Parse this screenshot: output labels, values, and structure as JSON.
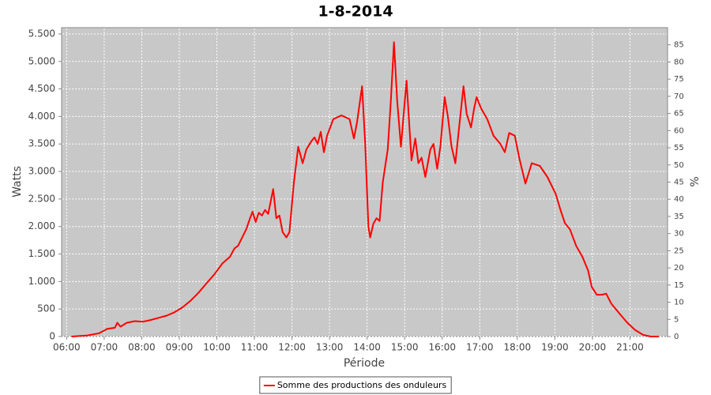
{
  "chart_data": {
    "type": "line",
    "title": "1-8-2014",
    "x_label": "Période",
    "y_label": "Watts",
    "y2_label": "%",
    "x": [
      "06:08",
      "06:33",
      "06:52",
      "07:05",
      "07:17",
      "07:21",
      "07:26",
      "07:36",
      "07:49",
      "08:02",
      "08:14",
      "08:27",
      "08:40",
      "08:52",
      "09:05",
      "09:18",
      "09:31",
      "09:43",
      "09:56",
      "10:09",
      "10:21",
      "10:28",
      "10:34",
      "10:47",
      "10:53",
      "10:57",
      "11:02",
      "11:07",
      "11:12",
      "11:17",
      "11:22",
      "11:30",
      "11:35",
      "11:40",
      "11:45",
      "11:51",
      "11:56",
      "12:03",
      "12:10",
      "12:17",
      "12:23",
      "12:31",
      "12:36",
      "12:41",
      "12:46",
      "12:51",
      "12:56",
      "13:06",
      "13:19",
      "13:32",
      "13:39",
      "13:44",
      "13:52",
      "13:57",
      "14:02",
      "14:05",
      "14:10",
      "14:15",
      "14:20",
      "14:25",
      "14:33",
      "14:38",
      "14:43",
      "14:48",
      "14:54",
      "15:03",
      "15:11",
      "15:17",
      "15:22",
      "15:27",
      "15:33",
      "15:41",
      "15:46",
      "15:52",
      "15:57",
      "16:04",
      "16:09",
      "16:15",
      "16:21",
      "16:26",
      "16:34",
      "16:39",
      "16:46",
      "16:51",
      "16:55",
      "17:02",
      "17:12",
      "17:22",
      "17:33",
      "17:40",
      "17:47",
      "17:56",
      "18:03",
      "18:13",
      "18:23",
      "18:36",
      "18:48",
      "19:01",
      "19:09",
      "19:16",
      "19:24",
      "19:34",
      "19:44",
      "19:53",
      "19:59",
      "20:07",
      "20:15",
      "20:22",
      "20:30",
      "20:43",
      "20:55",
      "21:08",
      "21:21",
      "21:33",
      "21:46"
    ],
    "series": [
      {
        "name": "Somme des productions des onduleurs",
        "color": "#ff0000",
        "values": [
          0,
          20,
          60,
          140,
          160,
          250,
          180,
          250,
          280,
          270,
          300,
          340,
          380,
          440,
          530,
          650,
          800,
          960,
          1130,
          1330,
          1450,
          1600,
          1650,
          1950,
          2150,
          2270,
          2080,
          2250,
          2200,
          2300,
          2230,
          2680,
          2150,
          2200,
          1900,
          1800,
          1900,
          2800,
          3450,
          3150,
          3400,
          3550,
          3620,
          3500,
          3720,
          3350,
          3650,
          3950,
          4020,
          3950,
          3600,
          3900,
          4550,
          3500,
          2000,
          1800,
          2050,
          2150,
          2100,
          2800,
          3400,
          4300,
          5350,
          4300,
          3450,
          4650,
          3200,
          3600,
          3150,
          3250,
          2900,
          3400,
          3500,
          3050,
          3450,
          4350,
          4000,
          3450,
          3150,
          3700,
          4550,
          4050,
          3800,
          4150,
          4350,
          4150,
          3950,
          3650,
          3500,
          3350,
          3700,
          3650,
          3250,
          2780,
          3150,
          3100,
          2900,
          2600,
          2300,
          2060,
          1950,
          1650,
          1450,
          1200,
          900,
          760,
          760,
          780,
          600,
          420,
          260,
          120,
          30,
          0,
          0
        ]
      }
    ],
    "xlim": [
      "05:52",
      "22:00"
    ],
    "xticks": [
      "06:00",
      "07:00",
      "08:00",
      "09:00",
      "10:00",
      "11:00",
      "12:00",
      "13:00",
      "14:00",
      "15:00",
      "16:00",
      "17:00",
      "18:00",
      "19:00",
      "20:00",
      "21:00"
    ],
    "ylim": [
      0,
      5614
    ],
    "yticks": [
      0,
      500,
      {
        "value": 1000,
        "label": "1.000"
      },
      {
        "value": 1500,
        "label": "1.500"
      },
      {
        "value": 2000,
        "label": "2.000"
      },
      {
        "value": 2500,
        "label": "2.500"
      },
      {
        "value": 3000,
        "label": "3.000"
      },
      {
        "value": 3500,
        "label": "3.500"
      },
      {
        "value": 4000,
        "label": "4.000"
      },
      {
        "value": 4500,
        "label": "4.500"
      },
      {
        "value": 5000,
        "label": "5.000"
      },
      {
        "value": 5500,
        "label": "5.500"
      }
    ],
    "y2lim": [
      0,
      90
    ],
    "y2ticks": [
      0,
      5,
      10,
      15,
      20,
      25,
      30,
      35,
      40,
      45,
      50,
      55,
      60,
      65,
      70,
      75,
      80,
      85
    ],
    "grid": true,
    "legend": "bottom"
  }
}
